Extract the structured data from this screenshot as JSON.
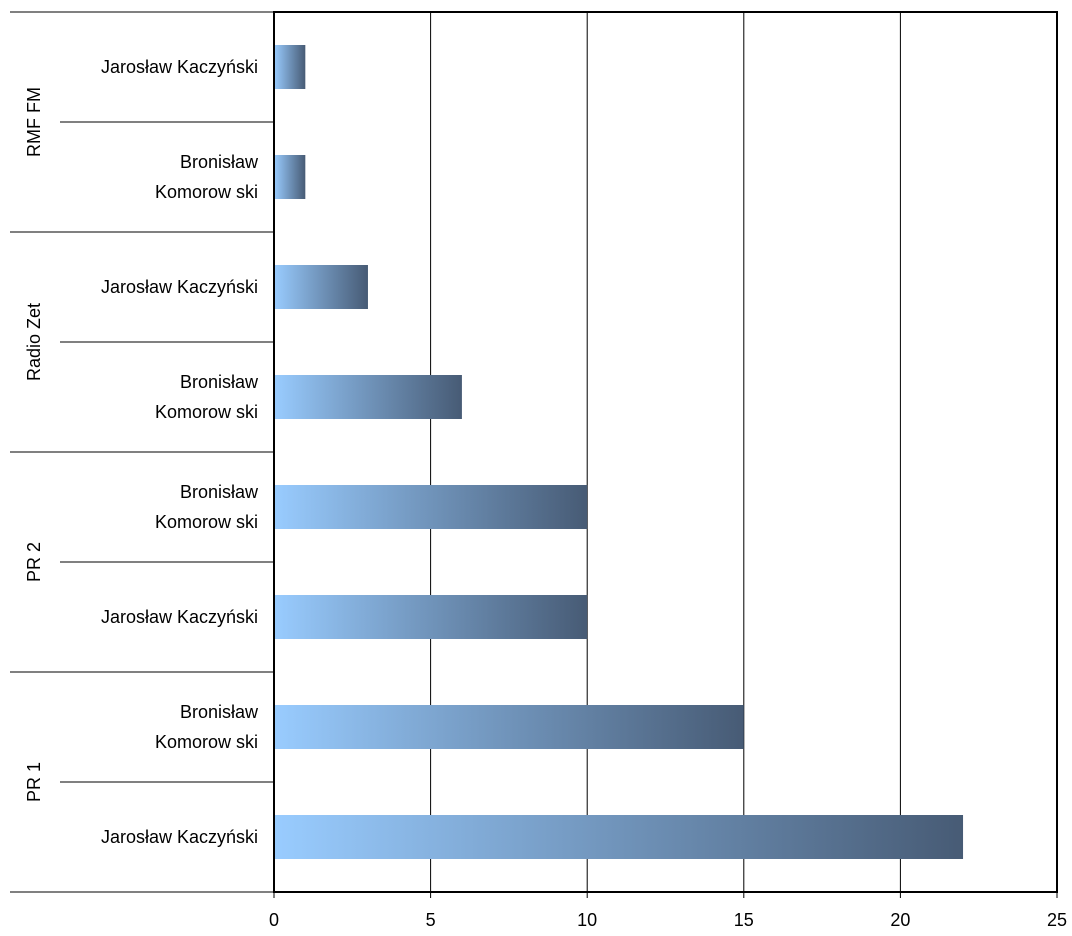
{
  "chart_data": {
    "type": "bar",
    "orientation": "horizontal",
    "grouping": "multi-level category axis",
    "groups": [
      {
        "label": "RMF FM",
        "bars": [
          {
            "lines": [
              "Jarosław  Kaczyński"
            ],
            "value": 1
          },
          {
            "lines": [
              "Bronisław",
              "Komorow ski"
            ],
            "value": 1
          }
        ]
      },
      {
        "label": "Radio Zet",
        "bars": [
          {
            "lines": [
              "Jarosław  Kaczyński"
            ],
            "value": 3
          },
          {
            "lines": [
              "Bronisław",
              "Komorow ski"
            ],
            "value": 6
          }
        ]
      },
      {
        "label": "PR 2",
        "bars": [
          {
            "lines": [
              "Bronisław",
              "Komorow ski"
            ],
            "value": 10
          },
          {
            "lines": [
              "Jarosław  Kaczyński"
            ],
            "value": 10
          }
        ]
      },
      {
        "label": "PR 1",
        "bars": [
          {
            "lines": [
              "Bronisław",
              "Komorow ski"
            ],
            "value": 15
          },
          {
            "lines": [
              "Jarosław  Kaczyński"
            ],
            "value": 22
          }
        ]
      }
    ],
    "xlim": [
      0,
      25
    ],
    "xticks": [
      "0",
      "5",
      "10",
      "15",
      "20",
      "25"
    ],
    "title": "",
    "xlabel": "",
    "ylabel": "",
    "grid": "vertical major gridlines",
    "legend": "none",
    "colors": {
      "bar_gradient_start": "#99ccff",
      "bar_gradient_end": "#475b75",
      "axis": "#000000",
      "grid": "#000000"
    }
  }
}
